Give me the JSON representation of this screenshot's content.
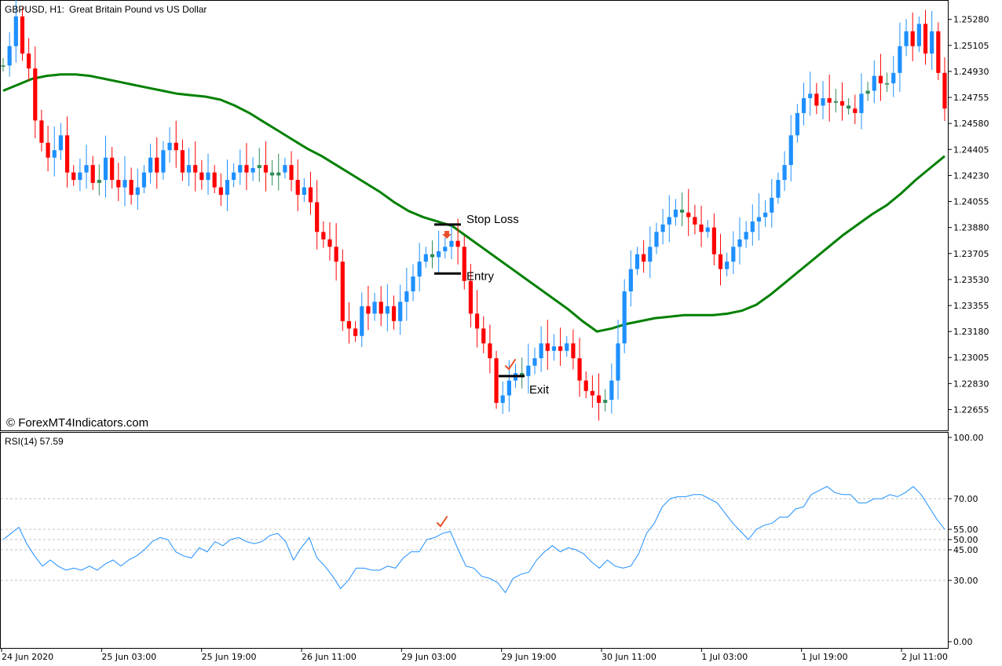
{
  "header": {
    "symbol_label": "GBPUSD, H1:",
    "description": "Great Britain Pound vs US Dollar",
    "watermark": "© ForexMT4Indicators.com"
  },
  "colors": {
    "bull": "#1E90FF",
    "bear": "#FF0000",
    "doji": "#2E8B57",
    "ma": "#008000",
    "rsi": "#1E90FF",
    "level_line": "#C0C0C0",
    "marker": "#E8502A"
  },
  "annotations": {
    "stop_loss_label": "Stop Loss",
    "entry_label": "Entry",
    "exit_label": "Exit",
    "stop_loss_price": 1.239,
    "entry_price": 1.2357,
    "exit_price": 1.2288,
    "sell_arrow_icon": "down-arrow-icon",
    "check_icon": "checkmark-icon"
  },
  "chart_data": [
    {
      "type": "candlestick",
      "title": "GBPUSD, H1:  Great Britain Pound vs US Dollar",
      "ylim": [
        1.2252,
        1.254
      ],
      "y_ticks": [
        "1.25280",
        "1.25105",
        "1.24930",
        "1.24755",
        "1.24580",
        "1.24405",
        "1.24230",
        "1.24055",
        "1.23880",
        "1.23705",
        "1.23530",
        "1.23355",
        "1.23180",
        "1.23005",
        "1.22830",
        "1.22655"
      ],
      "x_ticks": [
        "24 Jun 2020",
        "25 Jun 03:00",
        "25 Jun 19:00",
        "26 Jun 11:00",
        "29 Jun 03:00",
        "29 Jun 19:00",
        "30 Jun 11:00",
        "1 Jul 03:00",
        "1 Jul 19:00",
        "2 Jul 11:00"
      ],
      "close": [
        1.2497,
        1.251,
        1.253,
        1.2505,
        1.2495,
        1.246,
        1.2445,
        1.2435,
        1.244,
        1.245,
        1.2425,
        1.242,
        1.2425,
        1.243,
        1.2418,
        1.242,
        1.2435,
        1.242,
        1.2415,
        1.242,
        1.241,
        1.2415,
        1.2425,
        1.2435,
        1.2425,
        1.244,
        1.2445,
        1.244,
        1.2425,
        1.243,
        1.2425,
        1.242,
        1.2425,
        1.2415,
        1.241,
        1.242,
        1.2425,
        1.243,
        1.2425,
        1.2428,
        1.243,
        1.2425,
        1.2423,
        1.2425,
        1.243,
        1.242,
        1.241,
        1.2415,
        1.2405,
        1.2385,
        1.238,
        1.2375,
        1.2365,
        1.2325,
        1.232,
        1.2315,
        1.2335,
        1.233,
        1.2338,
        1.233,
        1.2335,
        1.2325,
        1.2338,
        1.2345,
        1.2355,
        1.2365,
        1.237,
        1.2368,
        1.2372,
        1.2375,
        1.2379,
        1.2375,
        1.2352,
        1.233,
        1.232,
        1.231,
        1.23,
        1.227,
        1.2275,
        1.2285,
        1.229,
        1.2288,
        1.2295,
        1.23,
        1.231,
        1.2305,
        1.2308,
        1.2305,
        1.231,
        1.23,
        1.2285,
        1.2278,
        1.2275,
        1.227,
        1.2272,
        1.2285,
        1.231,
        1.2345,
        1.236,
        1.237,
        1.2365,
        1.2375,
        1.2385,
        1.239,
        1.2395,
        1.24,
        1.2398,
        1.2395,
        1.239,
        1.2385,
        1.2388,
        1.237,
        1.236,
        1.2365,
        1.2375,
        1.238,
        1.2385,
        1.2392,
        1.2395,
        1.2398,
        1.2408,
        1.242,
        1.243,
        1.245,
        1.2465,
        1.2475,
        1.2478,
        1.247,
        1.2475,
        1.2472,
        1.2473,
        1.247,
        1.2468,
        1.2465,
        1.2478,
        1.248,
        1.249,
        1.2485,
        1.2485,
        1.2492,
        1.251,
        1.252,
        1.251,
        1.2525,
        1.2505,
        1.252,
        1.2492,
        1.2468
      ],
      "up": [
        true,
        true,
        false,
        false,
        false,
        false,
        false,
        false,
        false,
        false,
        false,
        false,
        false,
        false,
        false,
        false,
        true,
        false,
        false,
        true,
        false,
        false,
        true,
        true,
        false,
        true,
        true,
        false,
        false,
        true,
        false,
        false,
        true,
        false,
        false,
        true,
        true,
        true,
        false,
        true,
        true,
        false,
        false,
        true,
        true,
        false,
        false,
        true,
        false,
        false,
        false,
        false,
        false,
        false,
        false,
        false,
        true,
        false,
        true,
        false,
        true,
        false,
        true,
        true,
        true,
        true,
        true,
        false,
        true,
        true,
        true,
        false,
        false,
        false,
        false,
        false,
        false,
        false,
        true,
        true,
        true,
        false,
        true,
        true,
        true,
        false,
        true,
        false,
        true,
        false,
        false,
        false,
        false,
        false,
        true,
        true,
        true,
        true,
        true,
        true,
        false,
        true,
        true,
        true,
        true,
        true,
        false,
        false,
        false,
        false,
        true,
        false,
        false,
        true,
        true,
        true,
        true,
        true,
        true,
        true,
        true,
        true,
        true,
        true,
        true,
        true,
        true,
        false,
        true,
        false,
        true,
        false,
        false,
        false,
        true,
        true,
        true,
        false,
        false,
        true,
        true,
        true,
        false,
        true,
        false,
        true,
        false,
        false
      ],
      "moving_average": [
        1.248,
        1.2484,
        1.2488,
        1.249,
        1.2491,
        1.2491,
        1.249,
        1.2488,
        1.2486,
        1.2484,
        1.2482,
        1.248,
        1.2478,
        1.2477,
        1.2476,
        1.2474,
        1.247,
        1.2465,
        1.2459,
        1.2453,
        1.2447,
        1.2441,
        1.2436,
        1.243,
        1.2424,
        1.2418,
        1.2412,
        1.2405,
        1.2399,
        1.2395,
        1.2392,
        1.2389,
        1.2382,
        1.2375,
        1.2368,
        1.2361,
        1.2354,
        1.2347,
        1.234,
        1.2333,
        1.2325,
        1.2318,
        1.232,
        1.2323,
        1.2325,
        1.2327,
        1.2328,
        1.2329,
        1.2329,
        1.2329,
        1.233,
        1.2332,
        1.2336,
        1.2343,
        1.2351,
        1.2359,
        1.2367,
        1.2375,
        1.2383,
        1.239,
        1.2397,
        1.2403,
        1.2411,
        1.242,
        1.2428,
        1.2436
      ]
    },
    {
      "type": "line",
      "title": "RSI(14) 57.59",
      "name": "RSI(14)",
      "ylim": [
        0,
        100
      ],
      "y_ticks": [
        "100.00",
        "70.00",
        "55.00",
        "50.00",
        "45.00",
        "30.00",
        "0.00"
      ],
      "levels": [
        70,
        55,
        50,
        45,
        30
      ],
      "values": [
        50,
        53,
        56,
        48,
        42,
        37,
        40,
        37,
        35,
        36,
        35,
        37,
        35,
        38,
        40,
        37,
        40,
        42,
        45,
        49,
        51,
        50,
        44,
        42,
        41,
        46,
        44,
        49,
        47,
        50,
        51,
        49,
        48,
        49,
        52,
        53,
        49,
        40,
        46,
        51,
        41,
        37,
        32,
        26,
        30,
        36,
        36,
        35,
        35,
        37,
        36,
        41,
        44,
        44,
        50,
        51,
        53,
        54,
        45,
        37,
        36,
        32,
        31,
        29,
        24,
        31,
        33,
        34,
        40,
        44,
        47,
        44,
        46,
        45,
        43,
        39,
        36,
        40,
        37,
        36,
        37,
        43,
        53,
        58,
        66,
        70,
        71,
        71,
        72,
        72,
        70,
        68,
        63,
        58,
        54,
        50,
        55,
        57,
        58,
        61,
        61,
        65,
        66,
        72,
        74,
        76,
        73,
        72,
        72,
        68,
        68,
        70,
        70,
        72,
        71,
        73,
        76,
        72,
        66,
        60,
        55
      ]
    }
  ]
}
